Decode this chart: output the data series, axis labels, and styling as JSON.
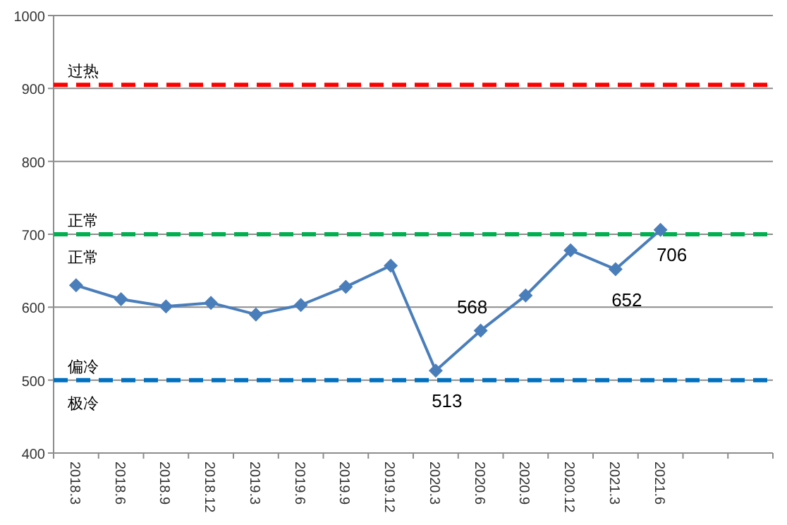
{
  "chart_data": {
    "type": "line",
    "categories": [
      "2018.3",
      "2018.6",
      "2018.9",
      "2018.12",
      "2019.3",
      "2019.6",
      "2019.9",
      "2019.12",
      "2020.3",
      "2020.6",
      "2020.9",
      "2020.12",
      "2021.3",
      "2021.6",
      null,
      null
    ],
    "series": [
      {
        "color": "#4a7ebb",
        "values": [
          630,
          611,
          601,
          606,
          590,
          603,
          628,
          657,
          513,
          568,
          616,
          678,
          652,
          706,
          null,
          null
        ],
        "value_labels": [
          null,
          null,
          null,
          null,
          null,
          null,
          null,
          null,
          "513",
          "568",
          null,
          null,
          "652",
          "706",
          null,
          null
        ]
      }
    ],
    "ylim": [
      400,
      1000
    ],
    "yticks": [
      400,
      500,
      600,
      700,
      800,
      900,
      1000
    ],
    "grid": "y",
    "marker": "diamond",
    "line_style": "solid",
    "ref_lines": [
      {
        "axis": "y",
        "value": 905,
        "label": "过热",
        "color": "#ff0000",
        "line_style": "dashed"
      },
      {
        "axis": "y",
        "value": 700,
        "label": "正常",
        "color": "#00b050",
        "line_style": "dashed"
      },
      {
        "axis": "y",
        "value": 500,
        "label": "偏冷",
        "color": "#0070c0",
        "line_style": "dashed"
      }
    ],
    "annotations": [
      {
        "text": "正常",
        "y": 700
      },
      {
        "text": "极冷",
        "y": 500
      }
    ]
  }
}
